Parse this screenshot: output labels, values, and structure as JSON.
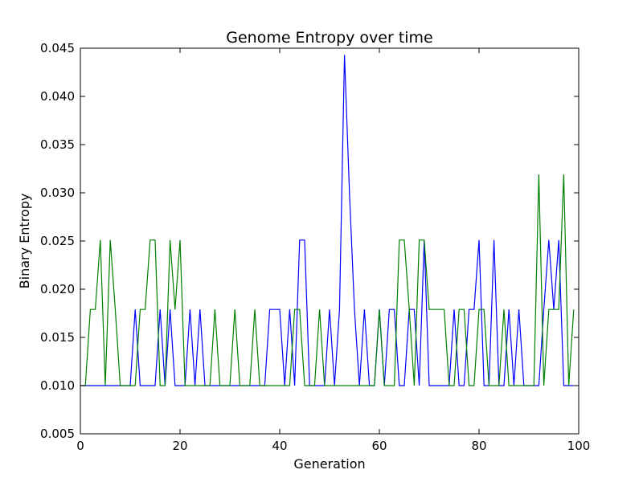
{
  "chart_data": {
    "type": "line",
    "title": "Genome Entropy over time",
    "xlabel": "Generation",
    "ylabel": "Binary Entropy",
    "xlim": [
      0,
      100
    ],
    "ylim": [
      0.005,
      0.045
    ],
    "xticks": [
      0,
      20,
      40,
      60,
      80,
      100
    ],
    "xtick_labels": [
      "0",
      "20",
      "40",
      "60",
      "80",
      "100"
    ],
    "yticks": [
      0.005,
      0.01,
      0.015,
      0.02,
      0.025,
      0.03,
      0.035,
      0.04,
      0.045
    ],
    "ytick_labels": [
      "0.005",
      "0.010",
      "0.015",
      "0.020",
      "0.025",
      "0.030",
      "0.035",
      "0.040",
      "0.045"
    ],
    "grid": false,
    "legend": "none",
    "x": [
      0,
      1,
      2,
      3,
      4,
      5,
      6,
      7,
      8,
      9,
      10,
      11,
      12,
      13,
      14,
      15,
      16,
      17,
      18,
      19,
      20,
      21,
      22,
      23,
      24,
      25,
      26,
      27,
      28,
      29,
      30,
      31,
      32,
      33,
      34,
      35,
      36,
      37,
      38,
      39,
      40,
      41,
      42,
      43,
      44,
      45,
      46,
      47,
      48,
      49,
      50,
      51,
      52,
      53,
      54,
      55,
      56,
      57,
      58,
      59,
      60,
      61,
      62,
      63,
      64,
      65,
      66,
      67,
      68,
      69,
      70,
      71,
      72,
      73,
      74,
      75,
      76,
      77,
      78,
      79,
      80,
      81,
      82,
      83,
      84,
      85,
      86,
      87,
      88,
      89,
      90,
      91,
      92,
      93,
      94,
      95,
      96,
      97,
      98,
      99
    ],
    "series": [
      {
        "color": "#0000ff",
        "values": [
          0.01,
          0.01,
          0.01,
          0.01,
          0.01,
          0.01,
          0.01,
          0.01,
          0.01,
          0.01,
          0.01,
          0.0179,
          0.01,
          0.01,
          0.01,
          0.01,
          0.0179,
          0.01,
          0.0179,
          0.01,
          0.01,
          0.01,
          0.0179,
          0.01,
          0.0179,
          0.01,
          0.01,
          0.01,
          0.01,
          0.01,
          0.01,
          0.01,
          0.01,
          0.01,
          0.01,
          0.01,
          0.01,
          0.01,
          0.0179,
          0.0179,
          0.0179,
          0.01,
          0.0179,
          0.01,
          0.0251,
          0.0251,
          0.01,
          0.01,
          0.01,
          0.01,
          0.0179,
          0.01,
          0.0179,
          0.0443,
          0.03,
          0.0179,
          0.01,
          0.0179,
          0.01,
          0.01,
          0.0179,
          0.01,
          0.0179,
          0.0179,
          0.01,
          0.01,
          0.0179,
          0.0179,
          0.01,
          0.0251,
          0.01,
          0.01,
          0.01,
          0.01,
          0.01,
          0.0179,
          0.01,
          0.01,
          0.0179,
          0.0179,
          0.0251,
          0.01,
          0.01,
          0.0251,
          0.01,
          0.01,
          0.0179,
          0.01,
          0.0179,
          0.01,
          0.01,
          0.01,
          0.01,
          0.0179,
          0.0251,
          0.0179,
          0.0251,
          0.01,
          0.01,
          0.01
        ]
      },
      {
        "color": "#008000",
        "values": [
          0.01,
          0.01,
          0.0179,
          0.0179,
          0.0251,
          0.01,
          0.0251,
          0.0179,
          0.01,
          0.01,
          0.01,
          0.01,
          0.0179,
          0.0179,
          0.0251,
          0.0251,
          0.01,
          0.01,
          0.0251,
          0.0179,
          0.0251,
          0.01,
          0.01,
          0.01,
          0.01,
          0.01,
          0.01,
          0.0179,
          0.01,
          0.01,
          0.01,
          0.0179,
          0.01,
          0.01,
          0.01,
          0.0179,
          0.01,
          0.01,
          0.01,
          0.01,
          0.01,
          0.01,
          0.01,
          0.0179,
          0.0179,
          0.01,
          0.01,
          0.01,
          0.0179,
          0.01,
          0.01,
          0.01,
          0.01,
          0.01,
          0.01,
          0.01,
          0.01,
          0.01,
          0.01,
          0.01,
          0.0179,
          0.01,
          0.01,
          0.01,
          0.0251,
          0.0251,
          0.0179,
          0.01,
          0.0251,
          0.0251,
          0.0179,
          0.0179,
          0.0179,
          0.0179,
          0.01,
          0.01,
          0.0179,
          0.0179,
          0.01,
          0.01,
          0.0179,
          0.0179,
          0.01,
          0.01,
          0.01,
          0.0179,
          0.01,
          0.01,
          0.01,
          0.01,
          0.01,
          0.01,
          0.0319,
          0.01,
          0.0179,
          0.0179,
          0.0179,
          0.0319,
          0.01,
          0.0179
        ]
      }
    ]
  }
}
